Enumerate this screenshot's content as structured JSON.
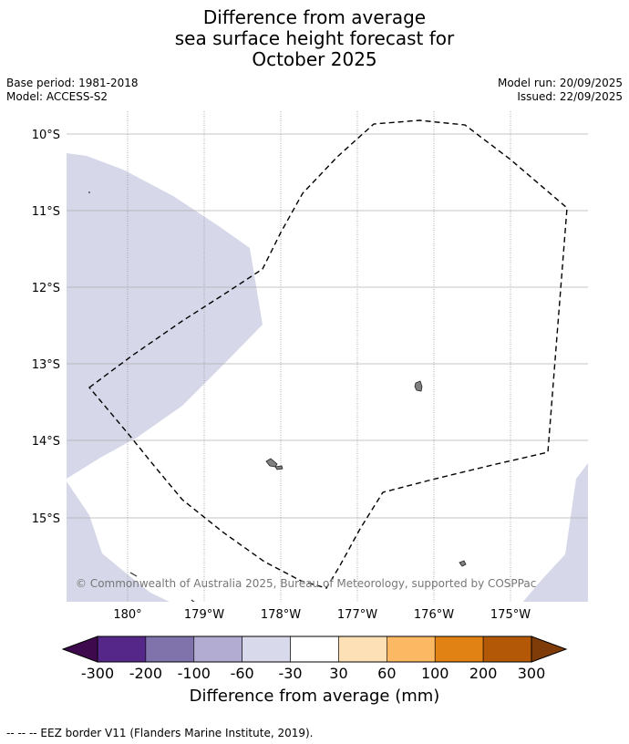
{
  "title": {
    "line1": "Difference from average",
    "line2": "sea surface height forecast for",
    "line3": "October 2025"
  },
  "meta": {
    "base_period": "Base period: 1981-2018",
    "model": "Model: ACCESS-S2",
    "model_run": "Model run: 20/09/2025",
    "issued": "Issued: 22/09/2025"
  },
  "map": {
    "latitude_labels": [
      "10°S",
      "11°S",
      "12°S",
      "13°S",
      "14°S",
      "15°S"
    ],
    "longitude_labels": [
      "180°",
      "179°W",
      "178°W",
      "177°W",
      "176°W",
      "175°W"
    ],
    "copyright": "© Commonwealth of Australia 2025, Bureau of Meteorology, supported by COSPPac",
    "anomaly_fill_color": "#d6d7e9",
    "land_color": "#808080"
  },
  "colorbar": {
    "title": "Difference from average (mm)",
    "labels": [
      "-300",
      "-200",
      "-100",
      "-60",
      "-30",
      "30",
      "60",
      "100",
      "200",
      "300"
    ],
    "under_color": "#3f0a4d",
    "over_color": "#7f3b08",
    "colors": [
      "#542788",
      "#8073ac",
      "#b2abd2",
      "#d8daeb",
      "#ffffff",
      "#fee0b6",
      "#fdb863",
      "#e08214",
      "#b35806"
    ]
  },
  "footer": {
    "legend": "--  --  -- EEZ border V11 (Flanders Marine Institute, 2019)."
  }
}
